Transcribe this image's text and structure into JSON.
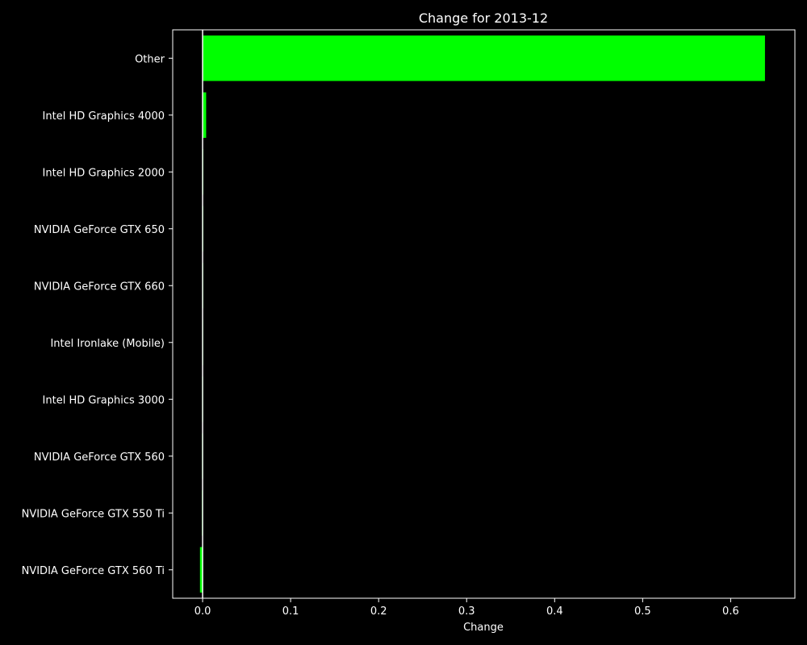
{
  "chart_data": {
    "type": "bar",
    "orientation": "horizontal",
    "title": "Change for 2013-12",
    "xlabel": "Change",
    "ylabel": "",
    "xlim": [
      -0.034,
      0.673
    ],
    "x_ticks": [
      0.0,
      0.1,
      0.2,
      0.3,
      0.4,
      0.5,
      0.6
    ],
    "x_tick_labels": [
      "0.0",
      "0.1",
      "0.2",
      "0.3",
      "0.4",
      "0.5",
      "0.6"
    ],
    "zero_line": true,
    "grid": false,
    "categories": [
      "Other",
      "Intel HD Graphics 4000",
      "Intel HD Graphics 2000",
      "NVIDIA GeForce GTX 650",
      "NVIDIA GeForce GTX 660",
      "Intel Ironlake (Mobile)",
      "Intel HD Graphics 3000",
      "NVIDIA GeForce GTX 560",
      "NVIDIA GeForce GTX 550 Ti",
      "NVIDIA GeForce GTX 560 Ti"
    ],
    "values": [
      0.639,
      0.004,
      0.0004,
      0.0003,
      0.0002,
      0.0001,
      -0.0001,
      -0.0002,
      -0.0004,
      -0.003
    ],
    "colors": {
      "background": "#000000",
      "bar": "#00ff00",
      "axes": "#ffffff",
      "text": "#ffffff"
    }
  }
}
